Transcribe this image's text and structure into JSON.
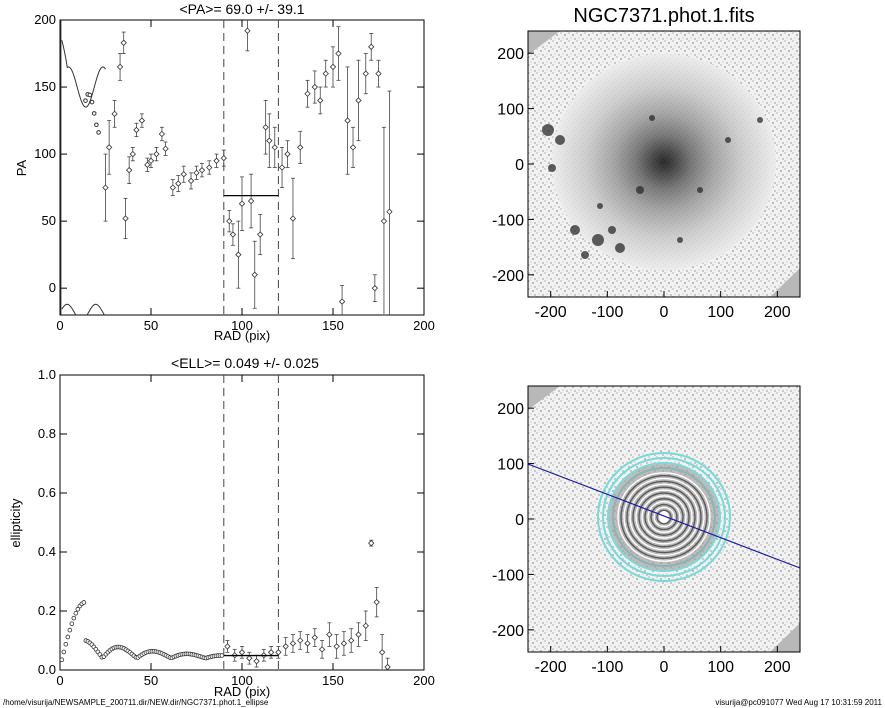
{
  "footer": {
    "left_path": "/home/visurija/NEWSAMPLE_200711.dir/NEW.dir/NGC7371.phot.1_ellipse",
    "right_stamp": "visurija@pc091077  Wed Aug 17 10:31:59 2011"
  },
  "chart_data": [
    {
      "type": "scatter",
      "title": "<PA>=  69.0 +/-  39.1",
      "xlabel": "RAD (pix)",
      "ylabel": "PA",
      "xlim": [
        0,
        200
      ],
      "ylim": [
        -20,
        200
      ],
      "xticks": [
        "0",
        "50",
        "100",
        "150",
        "200"
      ],
      "yticks": [
        "0",
        "50",
        "100",
        "150",
        "200"
      ],
      "vlines": [
        90,
        120
      ],
      "mean_line": {
        "x": [
          90,
          120
        ],
        "y": 69.0
      },
      "points": [
        {
          "x": 25,
          "y": 75,
          "err": 25
        },
        {
          "x": 27,
          "y": 105,
          "err": 20
        },
        {
          "x": 30,
          "y": 130,
          "err": 10
        },
        {
          "x": 33,
          "y": 165,
          "err": 10
        },
        {
          "x": 35,
          "y": 183,
          "err": 8
        },
        {
          "x": 36,
          "y": 52,
          "err": 15
        },
        {
          "x": 38,
          "y": 88,
          "err": 10
        },
        {
          "x": 40,
          "y": 100,
          "err": 5
        },
        {
          "x": 42,
          "y": 118,
          "err": 5
        },
        {
          "x": 45,
          "y": 125,
          "err": 5
        },
        {
          "x": 48,
          "y": 92,
          "err": 5
        },
        {
          "x": 50,
          "y": 95,
          "err": 5
        },
        {
          "x": 53,
          "y": 100,
          "err": 5
        },
        {
          "x": 56,
          "y": 115,
          "err": 5
        },
        {
          "x": 58,
          "y": 104,
          "err": 5
        },
        {
          "x": 62,
          "y": 75,
          "err": 6
        },
        {
          "x": 65,
          "y": 78,
          "err": 6
        },
        {
          "x": 68,
          "y": 85,
          "err": 6
        },
        {
          "x": 72,
          "y": 80,
          "err": 6
        },
        {
          "x": 75,
          "y": 86,
          "err": 5
        },
        {
          "x": 78,
          "y": 88,
          "err": 5
        },
        {
          "x": 82,
          "y": 90,
          "err": 5
        },
        {
          "x": 86,
          "y": 95,
          "err": 5
        },
        {
          "x": 90,
          "y": 97,
          "err": 6
        },
        {
          "x": 93,
          "y": 50,
          "err": 8
        },
        {
          "x": 95,
          "y": 40,
          "err": 8
        },
        {
          "x": 98,
          "y": 25,
          "err": 25
        },
        {
          "x": 100,
          "y": 63,
          "err": 20
        },
        {
          "x": 103,
          "y": 192,
          "err": 15
        },
        {
          "x": 105,
          "y": 65,
          "err": 20
        },
        {
          "x": 107,
          "y": 10,
          "err": 25
        },
        {
          "x": 110,
          "y": 40,
          "err": 15
        },
        {
          "x": 113,
          "y": 120,
          "err": 20
        },
        {
          "x": 115,
          "y": 110,
          "err": 20
        },
        {
          "x": 118,
          "y": 105,
          "err": 15
        },
        {
          "x": 122,
          "y": 90,
          "err": 15
        },
        {
          "x": 125,
          "y": 100,
          "err": 10
        },
        {
          "x": 128,
          "y": 52,
          "err": 30
        },
        {
          "x": 132,
          "y": 105,
          "err": 12
        },
        {
          "x": 136,
          "y": 145,
          "err": 10
        },
        {
          "x": 140,
          "y": 150,
          "err": 12
        },
        {
          "x": 143,
          "y": 140,
          "err": 10
        },
        {
          "x": 146,
          "y": 160,
          "err": 10
        },
        {
          "x": 150,
          "y": 165,
          "err": 15
        },
        {
          "x": 153,
          "y": 175,
          "err": 20
        },
        {
          "x": 155,
          "y": -10,
          "err": 12
        },
        {
          "x": 158,
          "y": 125,
          "err": 40
        },
        {
          "x": 161,
          "y": 105,
          "err": 15
        },
        {
          "x": 164,
          "y": 140,
          "err": 30
        },
        {
          "x": 168,
          "y": 160,
          "err": 15
        },
        {
          "x": 171,
          "y": 180,
          "err": 10
        },
        {
          "x": 173,
          "y": 0,
          "err": 10
        },
        {
          "x": 175,
          "y": 160,
          "err": 10
        },
        {
          "x": 178,
          "y": 50,
          "err": 70
        },
        {
          "x": 181,
          "y": 57,
          "err": 90
        }
      ]
    },
    {
      "type": "scatter",
      "title": "<ELL>= 0.049 +/-  0.025",
      "xlabel": "RAD (pix)",
      "ylabel": "ellipticity",
      "xlim": [
        0,
        200
      ],
      "ylim": [
        0,
        1
      ],
      "xticks": [
        "0",
        "50",
        "100",
        "150",
        "200"
      ],
      "yticks": [
        "0.0",
        "0.2",
        "0.4",
        "0.6",
        "0.8",
        "1.0"
      ],
      "vlines": [
        90,
        120
      ],
      "mean_line": {
        "x": [
          90,
          120
        ],
        "y": 0.049
      },
      "points": [
        {
          "x": 92,
          "y": 0.08,
          "err": 0.02
        },
        {
          "x": 96,
          "y": 0.05,
          "err": 0.02
        },
        {
          "x": 100,
          "y": 0.06,
          "err": 0.02
        },
        {
          "x": 104,
          "y": 0.04,
          "err": 0.02
        },
        {
          "x": 108,
          "y": 0.03,
          "err": 0.02
        },
        {
          "x": 112,
          "y": 0.05,
          "err": 0.02
        },
        {
          "x": 116,
          "y": 0.06,
          "err": 0.02
        },
        {
          "x": 120,
          "y": 0.06,
          "err": 0.02
        },
        {
          "x": 124,
          "y": 0.08,
          "err": 0.03
        },
        {
          "x": 128,
          "y": 0.09,
          "err": 0.03
        },
        {
          "x": 132,
          "y": 0.1,
          "err": 0.03
        },
        {
          "x": 136,
          "y": 0.09,
          "err": 0.03
        },
        {
          "x": 140,
          "y": 0.11,
          "err": 0.03
        },
        {
          "x": 144,
          "y": 0.07,
          "err": 0.03
        },
        {
          "x": 148,
          "y": 0.12,
          "err": 0.04
        },
        {
          "x": 152,
          "y": 0.08,
          "err": 0.04
        },
        {
          "x": 156,
          "y": 0.09,
          "err": 0.04
        },
        {
          "x": 160,
          "y": 0.1,
          "err": 0.04
        },
        {
          "x": 164,
          "y": 0.12,
          "err": 0.04
        },
        {
          "x": 168,
          "y": 0.15,
          "err": 0.05
        },
        {
          "x": 171,
          "y": 0.43,
          "err": 0.01
        },
        {
          "x": 174,
          "y": 0.23,
          "err": 0.05
        },
        {
          "x": 177,
          "y": 0.06,
          "err": 0.06
        },
        {
          "x": 180,
          "y": 0.01,
          "err": 0.03
        }
      ]
    },
    {
      "type": "heatmap",
      "title": "NGC7371.phot.1.fits",
      "xlim": [
        -240,
        240
      ],
      "ylim": [
        -240,
        240
      ],
      "xticks": [
        "-200",
        "-100",
        "0",
        "100",
        "200"
      ],
      "yticks": [
        "-200",
        "-100",
        "0",
        "100",
        "200"
      ]
    },
    {
      "type": "heatmap",
      "title": "",
      "xlim": [
        -240,
        240
      ],
      "ylim": [
        -240,
        240
      ],
      "xticks": [
        "-200",
        "-100",
        "0",
        "100",
        "200"
      ],
      "yticks": [
        "-200",
        "-100",
        "0",
        "100",
        "200"
      ],
      "pa_line_color": "#1a1aa8",
      "contour_color": "#7ad9d9"
    }
  ]
}
